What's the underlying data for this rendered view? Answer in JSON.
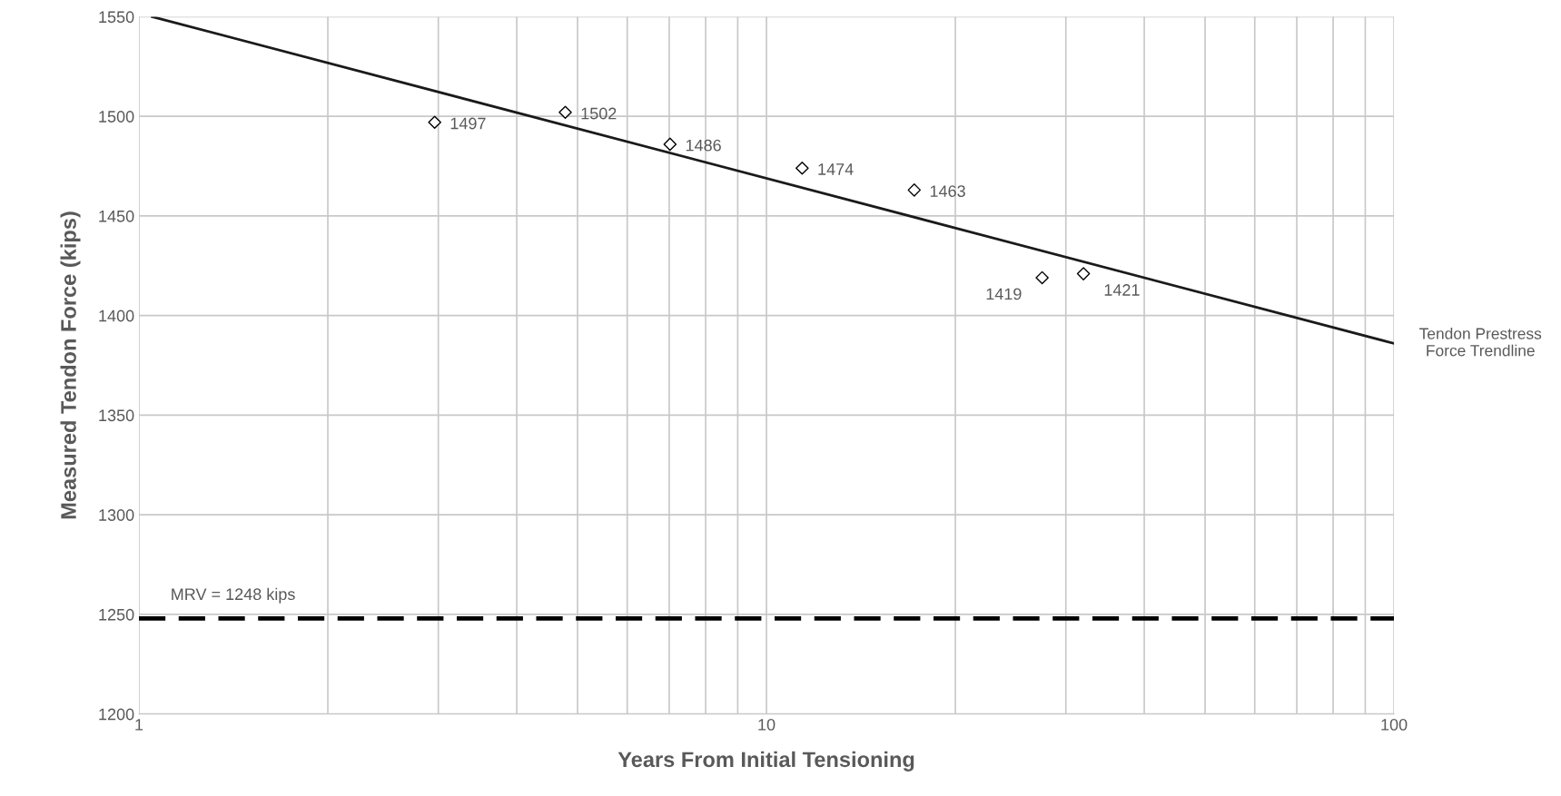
{
  "chart_data": {
    "type": "scatter",
    "xlabel": "Years From Initial Tensioning",
    "ylabel": "Measured Tendon Force (kips)",
    "log": "x",
    "xlim": [
      1,
      100
    ],
    "xticks": [
      1,
      10,
      100
    ],
    "ylim": [
      1200,
      1550
    ],
    "yticks": [
      1200,
      1250,
      1300,
      1350,
      1400,
      1450,
      1500,
      1550
    ],
    "grid": true,
    "marker": "diamond",
    "series": [
      {
        "x": [
          2.96,
          4.78,
          7.02,
          11.4,
          17.2,
          27.5,
          32
        ],
        "values": [
          1497,
          1502,
          1486,
          1474,
          1463,
          1419,
          1421
        ],
        "value_labels": [
          "1497",
          "1502",
          "1486",
          "1474",
          "1463",
          "1419",
          "1421"
        ],
        "color": "#000000"
      },
      {
        "type": "line",
        "name": "Tendon Prestress Force Trendline",
        "x": [
          1.05,
          100
        ],
        "values": [
          1550,
          1386
        ],
        "color": "#1a1a1a",
        "line_style": "solid",
        "marker": "none"
      }
    ],
    "ref_lines": [
      {
        "axis": "y",
        "value": 1248,
        "label": "MRV = 1248 kips",
        "color": "#000000",
        "line_style": "dashed"
      }
    ]
  }
}
